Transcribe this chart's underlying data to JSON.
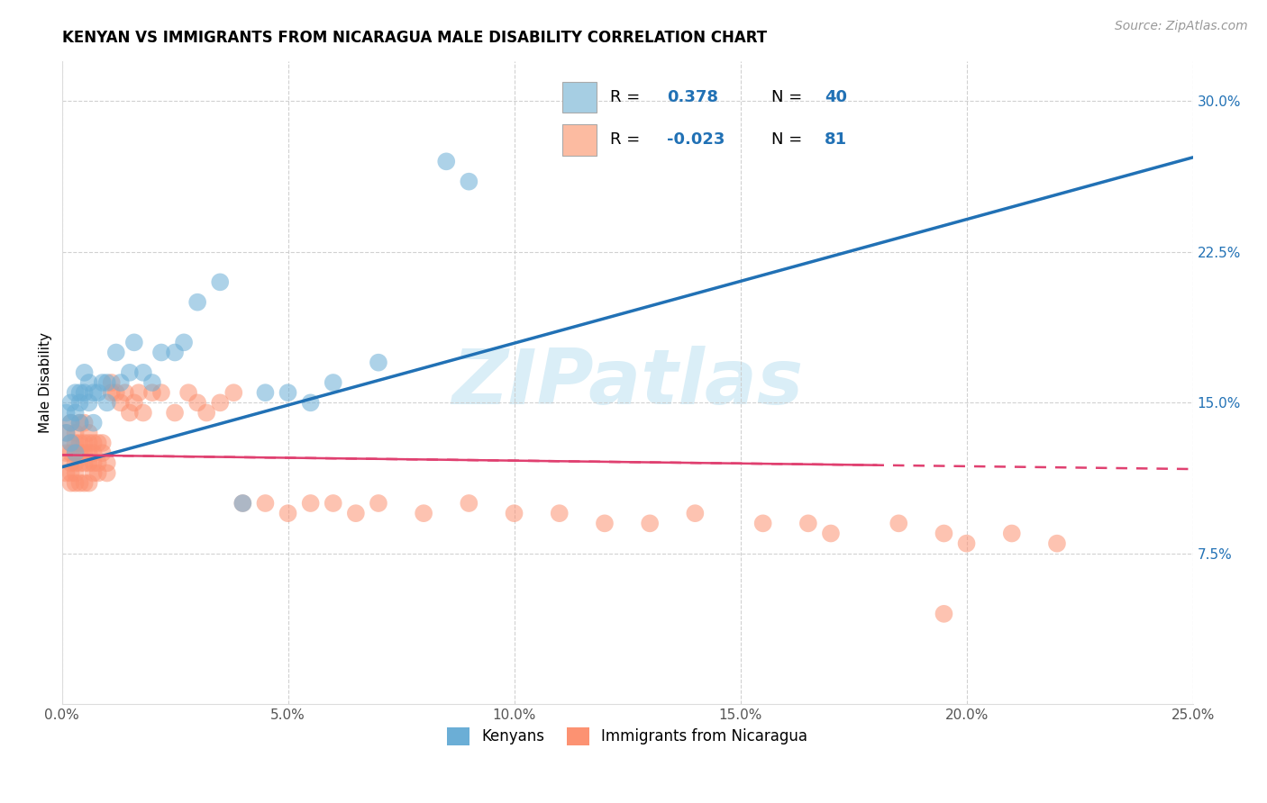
{
  "title": "KENYAN VS IMMIGRANTS FROM NICARAGUA MALE DISABILITY CORRELATION CHART",
  "source_text": "Source: ZipAtlas.com",
  "ylabel": "Male Disability",
  "xlim": [
    0.0,
    0.25
  ],
  "ylim": [
    0.0,
    0.32
  ],
  "xtick_labels": [
    "0.0%",
    "5.0%",
    "10.0%",
    "15.0%",
    "20.0%",
    "25.0%"
  ],
  "xtick_vals": [
    0.0,
    0.05,
    0.1,
    0.15,
    0.2,
    0.25
  ],
  "ytick_labels": [
    "7.5%",
    "15.0%",
    "22.5%",
    "30.0%"
  ],
  "ytick_vals": [
    0.075,
    0.15,
    0.225,
    0.3
  ],
  "kenyan_R": 0.378,
  "kenyan_N": 40,
  "nicaragua_R": -0.023,
  "nicaragua_N": 81,
  "kenyan_color": "#6baed6",
  "nicaragua_color": "#fc9272",
  "kenyan_line_color": "#2171b5",
  "nicaragua_line_color": "#e04070",
  "legend_box_color_kenyan": "#a6cee3",
  "legend_box_color_nicaragua": "#fcbba1",
  "watermark_color": "#daeef7",
  "background_color": "#ffffff",
  "grid_color": "#cccccc",
  "kenyan_x": [
    0.001,
    0.001,
    0.002,
    0.002,
    0.002,
    0.003,
    0.003,
    0.003,
    0.004,
    0.004,
    0.004,
    0.005,
    0.005,
    0.006,
    0.006,
    0.007,
    0.007,
    0.008,
    0.009,
    0.01,
    0.01,
    0.012,
    0.013,
    0.015,
    0.016,
    0.018,
    0.02,
    0.022,
    0.025,
    0.027,
    0.03,
    0.035,
    0.04,
    0.045,
    0.05,
    0.055,
    0.06,
    0.07,
    0.085,
    0.09
  ],
  "kenyan_y": [
    0.135,
    0.145,
    0.14,
    0.15,
    0.13,
    0.145,
    0.155,
    0.125,
    0.15,
    0.155,
    0.14,
    0.155,
    0.165,
    0.15,
    0.16,
    0.14,
    0.155,
    0.155,
    0.16,
    0.15,
    0.16,
    0.175,
    0.16,
    0.165,
    0.18,
    0.165,
    0.16,
    0.175,
    0.175,
    0.18,
    0.2,
    0.21,
    0.1,
    0.155,
    0.155,
    0.15,
    0.16,
    0.17,
    0.27,
    0.26
  ],
  "nicaragua_x": [
    0.001,
    0.001,
    0.001,
    0.002,
    0.002,
    0.002,
    0.002,
    0.002,
    0.002,
    0.003,
    0.003,
    0.003,
    0.003,
    0.003,
    0.003,
    0.004,
    0.004,
    0.004,
    0.004,
    0.004,
    0.005,
    0.005,
    0.005,
    0.005,
    0.005,
    0.006,
    0.006,
    0.006,
    0.006,
    0.006,
    0.007,
    0.007,
    0.007,
    0.007,
    0.008,
    0.008,
    0.008,
    0.009,
    0.009,
    0.01,
    0.01,
    0.011,
    0.011,
    0.012,
    0.013,
    0.014,
    0.015,
    0.016,
    0.017,
    0.018,
    0.02,
    0.022,
    0.025,
    0.028,
    0.03,
    0.032,
    0.035,
    0.038,
    0.04,
    0.045,
    0.05,
    0.055,
    0.06,
    0.065,
    0.07,
    0.08,
    0.09,
    0.1,
    0.11,
    0.12,
    0.13,
    0.14,
    0.155,
    0.165,
    0.17,
    0.185,
    0.195,
    0.2,
    0.21,
    0.22,
    0.195
  ],
  "nicaragua_y": [
    0.135,
    0.125,
    0.115,
    0.12,
    0.13,
    0.11,
    0.14,
    0.125,
    0.115,
    0.13,
    0.12,
    0.11,
    0.135,
    0.125,
    0.115,
    0.13,
    0.12,
    0.11,
    0.14,
    0.125,
    0.13,
    0.12,
    0.11,
    0.14,
    0.125,
    0.13,
    0.12,
    0.11,
    0.135,
    0.125,
    0.13,
    0.12,
    0.115,
    0.125,
    0.13,
    0.12,
    0.115,
    0.125,
    0.13,
    0.12,
    0.115,
    0.16,
    0.155,
    0.155,
    0.15,
    0.155,
    0.145,
    0.15,
    0.155,
    0.145,
    0.155,
    0.155,
    0.145,
    0.155,
    0.15,
    0.145,
    0.15,
    0.155,
    0.1,
    0.1,
    0.095,
    0.1,
    0.1,
    0.095,
    0.1,
    0.095,
    0.1,
    0.095,
    0.095,
    0.09,
    0.09,
    0.095,
    0.09,
    0.09,
    0.085,
    0.09,
    0.085,
    0.08,
    0.085,
    0.08,
    0.045
  ],
  "title_fontsize": 12,
  "axis_label_fontsize": 11,
  "tick_fontsize": 11,
  "legend_fontsize": 13
}
